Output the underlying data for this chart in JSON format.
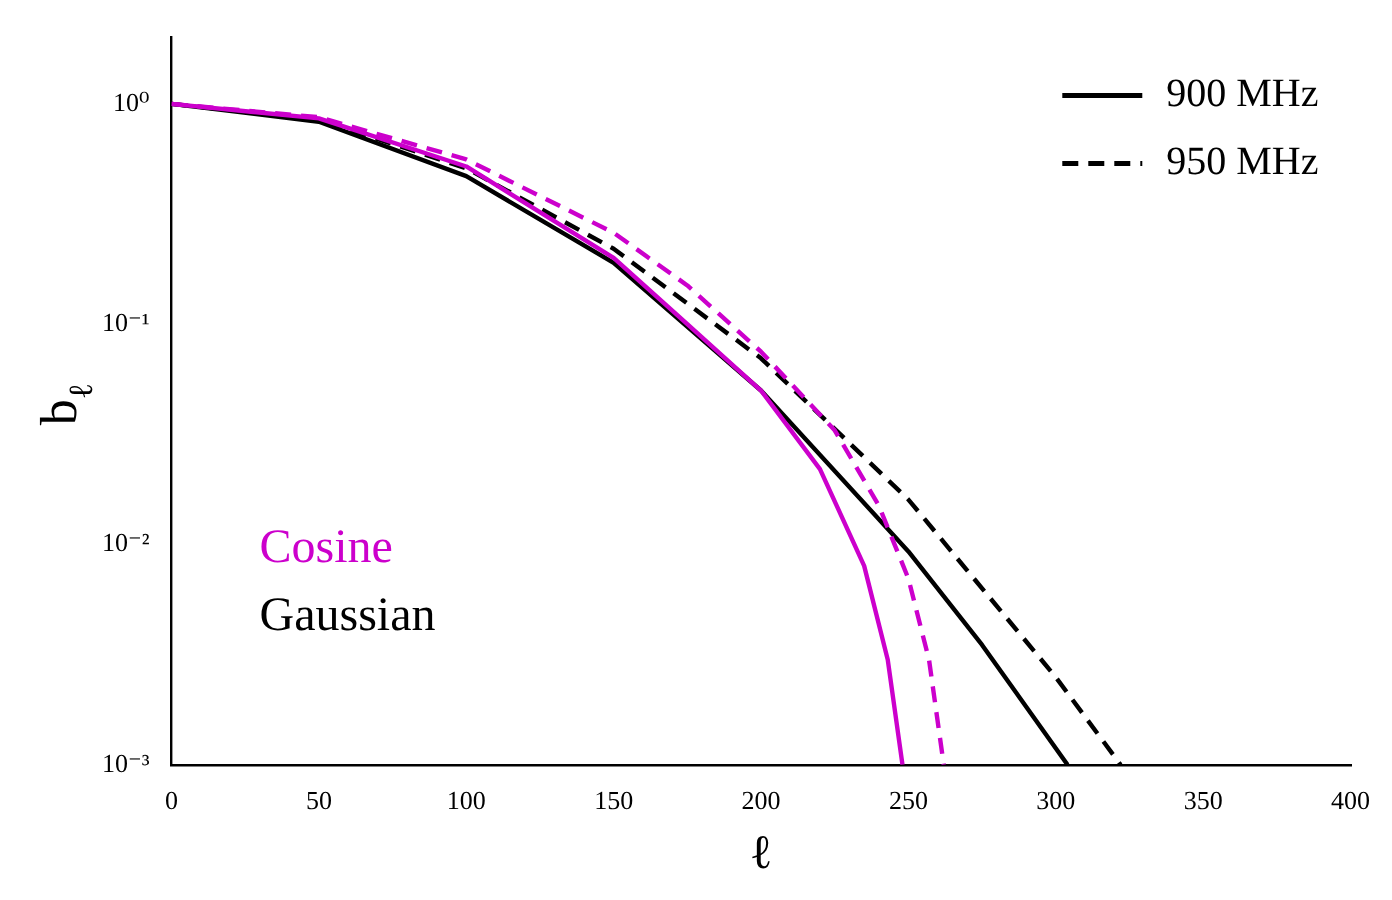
{
  "chart_data": {
    "type": "line",
    "xlabel": "ℓ",
    "ylabel": "b$_{ℓ}$",
    "log": "y",
    "xlim": [
      0,
      400
    ],
    "xticks": [
      0,
      50,
      100,
      150,
      200,
      250,
      300,
      350,
      400
    ],
    "ylim": [
      0.001,
      2
    ],
    "yticks": [
      {
        "value": 0.001,
        "label": "10⁻³"
      },
      {
        "value": 0.01,
        "label": "10⁻²"
      },
      {
        "value": 0.1,
        "label": "10⁻¹"
      },
      {
        "value": 1,
        "label": "10⁰"
      }
    ],
    "grid": false,
    "legend": "top right",
    "marker": "none",
    "annotations": [
      "Cosine",
      "Gaussian"
    ],
    "series": [
      {
        "color": "#cc00cc",
        "line_style": "solid",
        "x": [
          0,
          50,
          100,
          150,
          175,
          200,
          220,
          235,
          243,
          248
        ],
        "values": [
          1,
          0.86,
          0.52,
          0.2,
          0.1,
          0.05,
          0.022,
          0.008,
          0.003,
          0.001
        ]
      },
      {
        "color": "#cc00cc",
        "line_style": "dashed",
        "x": [
          0,
          50,
          100,
          150,
          175,
          200,
          225,
          240,
          250,
          257,
          262
        ],
        "values": [
          1,
          0.87,
          0.56,
          0.26,
          0.15,
          0.075,
          0.033,
          0.015,
          0.007,
          0.003,
          0.001
        ]
      },
      {
        "name": "900 MHz",
        "color": "#000000",
        "line_style": "solid",
        "x": [
          0,
          50,
          100,
          150,
          200,
          250,
          275,
          304
        ],
        "values": [
          1,
          0.83,
          0.47,
          0.19,
          0.05,
          0.0093,
          0.0035,
          0.001
        ]
      },
      {
        "name": "950 MHz",
        "color": "#000000",
        "line_style": "dashed",
        "x": [
          0,
          50,
          100,
          150,
          200,
          250,
          300,
          322
        ],
        "values": [
          1,
          0.85,
          0.51,
          0.22,
          0.07,
          0.016,
          0.0025,
          0.001
        ]
      }
    ]
  }
}
